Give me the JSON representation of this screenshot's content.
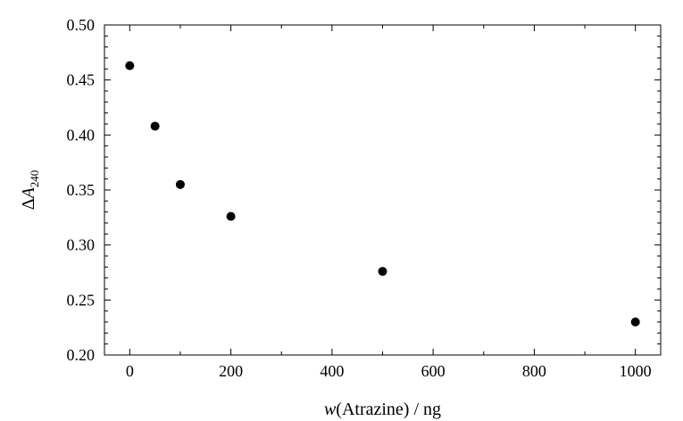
{
  "chart_data": {
    "type": "scatter",
    "title": "",
    "xlabel": {
      "italic": "w",
      "rest": "(Atrazine) / ng"
    },
    "ylabel": {
      "delta": "Δ",
      "italic": "A",
      "subscript": "240"
    },
    "xlim": [
      -50,
      1050
    ],
    "ylim": [
      0.2,
      0.5
    ],
    "x_ticks": [
      0,
      200,
      400,
      600,
      800,
      1000
    ],
    "y_ticks": [
      0.2,
      0.25,
      0.3,
      0.35,
      0.4,
      0.45,
      0.5
    ],
    "x_tick_labels": [
      "0",
      "200",
      "400",
      "600",
      "800",
      "1000"
    ],
    "y_tick_labels": [
      "0.20",
      "0.25",
      "0.30",
      "0.35",
      "0.40",
      "0.45",
      "0.50"
    ],
    "grid": false,
    "marker_color": "#000000",
    "points": [
      {
        "x": 0,
        "y": 0.463
      },
      {
        "x": 50,
        "y": 0.408
      },
      {
        "x": 100,
        "y": 0.355
      },
      {
        "x": 200,
        "y": 0.326
      },
      {
        "x": 500,
        "y": 0.276
      },
      {
        "x": 1000,
        "y": 0.23
      }
    ]
  }
}
